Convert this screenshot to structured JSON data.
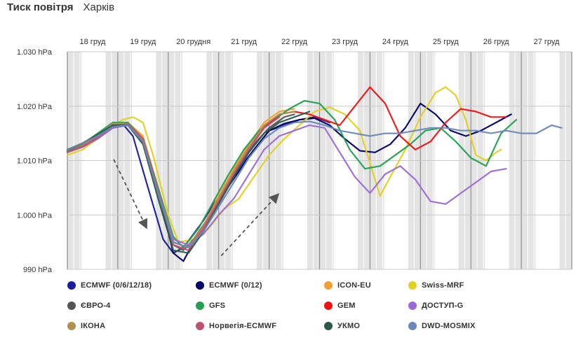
{
  "header": {
    "title": "Тиск повітря",
    "city": "Харків"
  },
  "chart_data": {
    "type": "line",
    "ylabel_unit": "hPa",
    "y_ticks": [
      "990 hPa",
      "1.000 hPa",
      "1.010 hPa",
      "1.020 hPa",
      "1.030 hPa"
    ],
    "y_tick_values": [
      990,
      1000,
      1010,
      1020,
      1030
    ],
    "ylim": [
      990,
      1030
    ],
    "xlim": [
      0,
      10
    ],
    "day_labels": [
      "18 груд",
      "19 груд",
      "20 грудня",
      "21 груд",
      "22 груд",
      "23 груд",
      "24 груд",
      "25 груд",
      "26 груд",
      "27 груд"
    ],
    "grid": true,
    "legend_position": "bottom",
    "series": [
      {
        "name": "ECMWF (0/6/12/18)",
        "color": "#1a1a9c",
        "x": [
          0,
          0.3,
          0.6,
          0.9,
          1.1,
          1.3,
          1.6,
          1.9,
          2.1,
          2.3,
          2.5,
          2.7,
          2.9,
          3.1,
          3.4,
          3.7,
          4.0,
          4.3,
          4.6,
          4.9,
          5.2
        ],
        "y": [
          1011.7,
          1012.5,
          1014.0,
          1016.5,
          1016.7,
          1014.5,
          1005.0,
          995.5,
          993.0,
          994.0,
          996.5,
          999.0,
          1002.0,
          1004.5,
          1008.5,
          1012.0,
          1015.5,
          1016.5,
          1017.5,
          1018.0,
          1017.0
        ]
      },
      {
        "name": "ECMWF (0/12)",
        "color": "#000066",
        "x": [
          0,
          0.3,
          0.6,
          0.9,
          1.2,
          1.5,
          1.8,
          2.1,
          2.3,
          2.5,
          2.8,
          3.1,
          3.4,
          3.7,
          4.0,
          4.3,
          4.6,
          4.9,
          5.2,
          5.5,
          5.8,
          6.1,
          6.4,
          6.7,
          7.0,
          7.3,
          7.6,
          7.9,
          8.2,
          8.5,
          8.8
        ],
        "y": [
          1011.5,
          1012.5,
          1014.0,
          1016.0,
          1016.8,
          1014.0,
          1004.5,
          993.0,
          991.5,
          995.0,
          999.5,
          1004.0,
          1008.0,
          1012.0,
          1015.5,
          1016.8,
          1017.5,
          1017.8,
          1016.5,
          1014.0,
          1011.8,
          1011.5,
          1013.0,
          1016.0,
          1020.5,
          1018.5,
          1015.5,
          1014.5,
          1015.5,
          1017.0,
          1018.5
        ]
      },
      {
        "name": "ICON-EU",
        "color": "#f0a030",
        "x": [
          0,
          0.3,
          0.6,
          0.9,
          1.2,
          1.5,
          1.8,
          2.1,
          2.4,
          2.7,
          3.0,
          3.3,
          3.6,
          3.9,
          4.2,
          4.5
        ],
        "y": [
          1011.8,
          1013.0,
          1014.5,
          1016.5,
          1017.0,
          1014.5,
          1005.0,
          995.0,
          994.0,
          998.0,
          1003.5,
          1008.5,
          1013.0,
          1017.0,
          1019.0,
          1019.5
        ]
      },
      {
        "name": "Swiss-MRF",
        "color": "#e0d020",
        "x": [
          0,
          0.3,
          0.6,
          0.9,
          1.1,
          1.3,
          1.5,
          1.7,
          2.0,
          2.2,
          2.5,
          2.8,
          3.1,
          3.4,
          3.7,
          4.0,
          4.3,
          4.6,
          4.9,
          5.2,
          5.5,
          5.8,
          6.0,
          6.2,
          6.4,
          6.7,
          7.0,
          7.3,
          7.5,
          7.7,
          7.9,
          8.1,
          8.3,
          8.5,
          8.6
        ],
        "y": [
          1011.0,
          1012.0,
          1014.0,
          1016.5,
          1017.5,
          1018.0,
          1017.0,
          1011.0,
          1000.0,
          995.0,
          995.5,
          997.5,
          1001.0,
          1003.0,
          1007.0,
          1011.0,
          1014.0,
          1016.5,
          1019.0,
          1019.8,
          1018.5,
          1015.5,
          1009.5,
          1003.5,
          1007.0,
          1012.0,
          1018.0,
          1022.5,
          1023.5,
          1022.0,
          1017.5,
          1011.0,
          1010.0,
          1011.5,
          1012.0
        ]
      },
      {
        "name": "ЄВРО-4",
        "color": "#555555",
        "x": [
          0,
          0.3,
          0.6,
          0.9,
          1.2,
          1.5,
          1.8,
          2.1,
          2.3,
          2.5,
          2.8,
          3.1,
          3.4,
          3.7,
          4.0,
          4.3,
          4.5
        ],
        "y": [
          1012.0,
          1013.0,
          1014.5,
          1016.0,
          1016.5,
          1013.5,
          1004.0,
          994.5,
          993.5,
          995.5,
          999.5,
          1004.5,
          1009.0,
          1013.0,
          1016.0,
          1018.0,
          1018.5
        ]
      },
      {
        "name": "GFS",
        "color": "#20a050",
        "x": [
          0,
          0.3,
          0.6,
          0.9,
          1.2,
          1.5,
          1.8,
          2.1,
          2.3,
          2.6,
          2.9,
          3.2,
          3.5,
          3.8,
          4.1,
          4.4,
          4.7,
          5.0,
          5.3,
          5.6,
          5.9,
          6.2,
          6.5,
          6.8,
          7.1,
          7.4,
          7.7,
          8.0,
          8.3,
          8.6,
          8.9
        ],
        "y": [
          1011.8,
          1013.0,
          1015.0,
          1017.0,
          1017.0,
          1014.0,
          1005.0,
          996.0,
          994.0,
          997.5,
          1002.5,
          1007.5,
          1012.0,
          1015.5,
          1017.5,
          1019.5,
          1021.0,
          1020.5,
          1017.5,
          1012.0,
          1008.5,
          1009.0,
          1011.0,
          1013.0,
          1015.5,
          1016.0,
          1013.5,
          1010.5,
          1009.0,
          1015.0,
          1017.5
        ]
      },
      {
        "name": "GEM",
        "color": "#ee1111",
        "x": [
          0,
          0.3,
          0.6,
          0.9,
          1.2,
          1.5,
          1.8,
          2.1,
          2.4,
          2.7,
          3.0,
          3.3,
          3.6,
          3.9,
          4.2,
          4.5,
          4.8,
          5.1,
          5.4,
          5.7,
          6.0,
          6.3,
          6.6,
          6.9,
          7.2,
          7.5,
          7.8,
          8.1,
          8.4,
          8.7
        ],
        "y": [
          1011.5,
          1012.8,
          1014.5,
          1016.5,
          1016.8,
          1014.0,
          1004.5,
          995.0,
          994.0,
          998.0,
          1003.0,
          1008.0,
          1012.5,
          1016.0,
          1018.5,
          1019.0,
          1018.5,
          1017.5,
          1016.5,
          1020.0,
          1023.5,
          1020.5,
          1014.5,
          1012.0,
          1013.5,
          1017.0,
          1019.5,
          1019.0,
          1018.0,
          1018.0
        ]
      },
      {
        "name": "ДОСТУП-G",
        "color": "#9a6ad8",
        "x": [
          0,
          0.3,
          0.6,
          0.9,
          1.2,
          1.5,
          1.8,
          2.1,
          2.4,
          2.7,
          3.0,
          3.3,
          3.6,
          3.9,
          4.2,
          4.5,
          4.8,
          5.1,
          5.4,
          5.7,
          6.0,
          6.3,
          6.6,
          6.9,
          7.2,
          7.5,
          7.8,
          8.1,
          8.4,
          8.7
        ],
        "y": [
          1011.5,
          1012.5,
          1014.0,
          1016.0,
          1016.5,
          1013.5,
          1004.5,
          995.5,
          994.5,
          996.5,
          1000.0,
          1003.0,
          1007.5,
          1012.0,
          1014.5,
          1015.5,
          1016.5,
          1016.0,
          1011.5,
          1007.0,
          1004.0,
          1007.5,
          1009.0,
          1006.5,
          1002.5,
          1002.0,
          1004.0,
          1006.0,
          1008.0,
          1008.5
        ]
      },
      {
        "name": "ІКОНА",
        "color": "#b09050",
        "x": [
          0,
          0.3,
          0.6,
          0.9,
          1.2,
          1.5,
          1.8,
          2.1,
          2.4,
          2.7,
          3.0,
          3.3,
          3.6,
          3.9,
          4.2,
          4.5
        ],
        "y": [
          1011.5,
          1012.8,
          1014.5,
          1016.8,
          1016.8,
          1014.0,
          1004.5,
          995.0,
          994.0,
          998.0,
          1003.0,
          1008.0,
          1012.5,
          1016.5,
          1018.5,
          1019.0
        ]
      },
      {
        "name": "Норвегія-ECMWF",
        "color": "#c05070",
        "x": [
          0,
          0.3,
          0.6,
          0.9,
          1.2,
          1.5,
          1.8,
          2.1,
          2.4,
          2.7,
          3.0,
          3.3,
          3.6,
          3.9,
          4.2
        ],
        "y": [
          1011.6,
          1012.6,
          1014.2,
          1016.3,
          1016.7,
          1014.0,
          1004.5,
          994.5,
          993.5,
          997.5,
          1002.5,
          1007.5,
          1012.0,
          1016.0,
          1018.0
        ]
      },
      {
        "name": "УКМО",
        "color": "#2a5a4a",
        "x": [
          0,
          0.3,
          0.6,
          0.9,
          1.2,
          1.5,
          1.8,
          2.1,
          2.4,
          2.7,
          3.0,
          3.3,
          3.6,
          3.9,
          4.2,
          4.5,
          4.8
        ],
        "y": [
          1012.0,
          1013.2,
          1014.8,
          1016.5,
          1016.5,
          1013.0,
          1003.0,
          993.5,
          993.0,
          997.0,
          1002.0,
          1007.0,
          1011.5,
          1015.0,
          1017.0,
          1018.0,
          1019.0
        ]
      },
      {
        "name": "DWD-MOSMIX",
        "color": "#6a88b8",
        "x": [
          0,
          0.3,
          0.6,
          0.9,
          1.2,
          1.5,
          1.8,
          2.1,
          2.4,
          2.7,
          3.0,
          3.3,
          3.6,
          3.9,
          4.2,
          4.5,
          4.8,
          5.1,
          5.4,
          5.7,
          6.0,
          6.3,
          6.6,
          6.9,
          7.2,
          7.5,
          7.8,
          8.1,
          8.4,
          8.7,
          9.0,
          9.3,
          9.6,
          9.8
        ],
        "y": [
          1012.0,
          1013.2,
          1014.5,
          1016.2,
          1016.5,
          1013.5,
          1004.0,
          995.0,
          994.0,
          997.0,
          1001.5,
          1006.0,
          1010.5,
          1014.0,
          1016.0,
          1017.0,
          1017.2,
          1016.5,
          1015.5,
          1015.0,
          1014.5,
          1015.0,
          1015.0,
          1015.5,
          1016.0,
          1016.0,
          1015.5,
          1015.5,
          1015.0,
          1015.5,
          1015.0,
          1015.0,
          1016.5,
          1016.0
        ]
      }
    ]
  }
}
